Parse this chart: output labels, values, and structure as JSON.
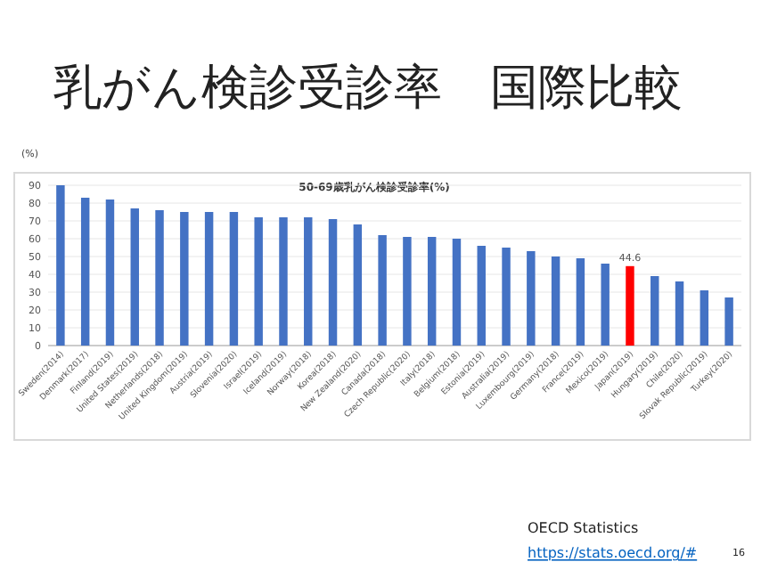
{
  "chart_data": {
    "type": "bar",
    "title": "乳がん検診受診率　国際比較",
    "subtitle": "50-69歳乳がん検診受診率(%)",
    "ylabel": "(%)",
    "categories": [
      "Sweden(2014)",
      "Denmark(2017)",
      "Finland(2019)",
      "United States(2019)",
      "Netherlands(2018)",
      "United Kingdom(2019)",
      "Austria(2019)",
      "Slovenia(2020)",
      "Israel(2019)",
      "Iceland(2019)",
      "Norway(2018)",
      "Korea(2018)",
      "New Zealand(2020)",
      "Canada(2018)",
      "Czech Republic(2020)",
      "Italy(2018)",
      "Belgium(2018)",
      "Estonia(2019)",
      "Australia(2019)",
      "Luxembourg(2019)",
      "Germany(2018)",
      "France(2019)",
      "Mexico(2019)",
      "Japan(2019)",
      "Hungary(2019)",
      "Chile(2020)",
      "Slovak Republic(2019)",
      "Turkey(2020)"
    ],
    "values": [
      90,
      83,
      82,
      77,
      76,
      75,
      75,
      75,
      72,
      72,
      72,
      71,
      68,
      62,
      61,
      61,
      60,
      56,
      55,
      53,
      50,
      49,
      46,
      44.6,
      39,
      36,
      31,
      27
    ],
    "colors": [
      "#4472c4",
      "#4472c4",
      "#4472c4",
      "#4472c4",
      "#4472c4",
      "#4472c4",
      "#4472c4",
      "#4472c4",
      "#4472c4",
      "#4472c4",
      "#4472c4",
      "#4472c4",
      "#4472c4",
      "#4472c4",
      "#4472c4",
      "#4472c4",
      "#4472c4",
      "#4472c4",
      "#4472c4",
      "#4472c4",
      "#4472c4",
      "#4472c4",
      "#4472c4",
      "#ff0000",
      "#4472c4",
      "#4472c4",
      "#4472c4",
      "#4472c4"
    ],
    "value_labels": [
      null,
      null,
      null,
      null,
      null,
      null,
      null,
      null,
      null,
      null,
      null,
      null,
      null,
      null,
      null,
      null,
      null,
      null,
      null,
      null,
      null,
      null,
      null,
      "44.6",
      null,
      null,
      null,
      null
    ],
    "ylim": [
      0,
      95
    ],
    "yticks": [
      0,
      10,
      20,
      30,
      40,
      50,
      60,
      70,
      80,
      90
    ],
    "grid": "y",
    "annotations": [
      "OECD Statistics",
      "https://stats.oecd.org/#",
      "16"
    ]
  }
}
